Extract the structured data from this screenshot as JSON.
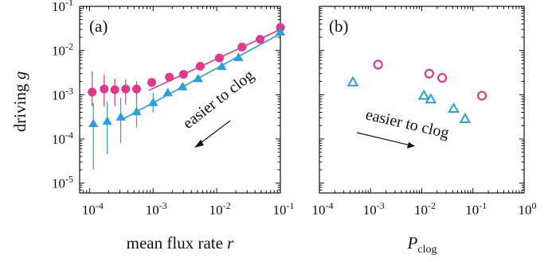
{
  "chart_data": [
    {
      "type": "scatter",
      "panel_label": "(a)",
      "xlabel": "mean flux rate r",
      "ylabel": "driving g",
      "xscale": "log",
      "yscale": "log",
      "xlim": [
        7e-05,
        0.1
      ],
      "ylim": [
        6e-06,
        0.1
      ],
      "x_ticks": [
        {
          "value": 0.0001,
          "base": "10",
          "exp": "-4"
        },
        {
          "value": 0.001,
          "base": "10",
          "exp": "-3"
        },
        {
          "value": 0.01,
          "base": "10",
          "exp": "-2"
        },
        {
          "value": 0.1,
          "base": "10",
          "exp": "-1"
        }
      ],
      "y_ticks": [
        {
          "value": 1e-05,
          "base": "10",
          "exp": "-5"
        },
        {
          "value": 0.0001,
          "base": "10",
          "exp": "-4"
        },
        {
          "value": 0.001,
          "base": "10",
          "exp": "-3"
        },
        {
          "value": 0.01,
          "base": "10",
          "exp": "-2"
        },
        {
          "value": 0.1,
          "base": "10",
          "exp": "-1"
        }
      ],
      "series": [
        {
          "marker": "circle",
          "color": "#e0388a",
          "points": [
            {
              "x": 0.00011,
              "y": 0.00115,
              "ylo": 0.00055,
              "yhi": 0.0034
            },
            {
              "x": 0.00017,
              "y": 0.00135,
              "ylo": 0.00055,
              "yhi": 0.0028
            },
            {
              "x": 0.00025,
              "y": 0.0013,
              "ylo": 0.00055,
              "yhi": 0.0023
            },
            {
              "x": 0.00037,
              "y": 0.00135,
              "ylo": 0.0006,
              "yhi": 0.0022
            },
            {
              "x": 0.00055,
              "y": 0.00135,
              "ylo": 0.0007,
              "yhi": 0.002
            },
            {
              "x": 0.00095,
              "y": 0.0019
            },
            {
              "x": 0.0018,
              "y": 0.0025
            },
            {
              "x": 0.003,
              "y": 0.0029
            },
            {
              "x": 0.0055,
              "y": 0.0044
            },
            {
              "x": 0.011,
              "y": 0.0068
            },
            {
              "x": 0.025,
              "y": 0.012
            },
            {
              "x": 0.048,
              "y": 0.018
            },
            {
              "x": 0.1,
              "y": 0.033
            }
          ],
          "fit_line": [
            [
              0.00085,
              0.00125
            ],
            [
              0.1,
              0.03
            ]
          ]
        },
        {
          "marker": "triangle",
          "color": "#2b9fd6",
          "points": [
            {
              "x": 0.000115,
              "y": 0.00022,
              "ylo": 2e-05,
              "yhi": 0.00065
            },
            {
              "x": 0.00019,
              "y": 0.00025,
              "ylo": 4.5e-05,
              "yhi": 0.0007
            },
            {
              "x": 0.00031,
              "y": 0.00031,
              "ylo": 8e-05,
              "yhi": 0.00085
            },
            {
              "x": 0.00055,
              "y": 0.00041,
              "ylo": 0.00018,
              "yhi": 0.00095
            },
            {
              "x": 0.001,
              "y": 0.00066,
              "ylo": 0.0004,
              "yhi": 0.0011
            },
            {
              "x": 0.0017,
              "y": 0.0011
            },
            {
              "x": 0.0029,
              "y": 0.0015
            },
            {
              "x": 0.0051,
              "y": 0.0023
            },
            {
              "x": 0.012,
              "y": 0.0043
            },
            {
              "x": 0.022,
              "y": 0.0069
            },
            {
              "x": 0.1,
              "y": 0.026
            }
          ],
          "fit_line": [
            [
              0.00035,
              0.00029
            ],
            [
              0.1,
              0.024
            ]
          ]
        }
      ],
      "annotation": {
        "text": "easier to clog",
        "arrow": "down-left"
      }
    },
    {
      "type": "scatter",
      "panel_label": "(b)",
      "xlabel": "P",
      "xlabel_sub": "clog",
      "xscale": "log",
      "yscale": "log",
      "xlim": [
        0.0001,
        1
      ],
      "ylim": [
        6e-06,
        0.1
      ],
      "x_ticks": [
        {
          "value": 0.0001,
          "base": "10",
          "exp": "-4"
        },
        {
          "value": 0.001,
          "base": "10",
          "exp": "-3"
        },
        {
          "value": 0.01,
          "base": "10",
          "exp": "-2"
        },
        {
          "value": 0.1,
          "base": "10",
          "exp": "-1"
        },
        {
          "value": 1,
          "base": "10",
          "exp": "0"
        }
      ],
      "series": [
        {
          "marker": "circle-open",
          "color": "#e0388a",
          "points": [
            {
              "x": 0.0014,
              "y": 0.0048
            },
            {
              "x": 0.014,
              "y": 0.003
            },
            {
              "x": 0.025,
              "y": 0.0024
            },
            {
              "x": 0.15,
              "y": 0.00095
            }
          ]
        },
        {
          "marker": "triangle-open",
          "color": "#2b9fd6",
          "points": [
            {
              "x": 0.00045,
              "y": 0.0019
            },
            {
              "x": 0.011,
              "y": 0.00095
            },
            {
              "x": 0.015,
              "y": 0.00078
            },
            {
              "x": 0.042,
              "y": 0.00048
            },
            {
              "x": 0.07,
              "y": 0.00028
            }
          ]
        }
      ],
      "annotation": {
        "text": "easier to clog",
        "arrow": "right"
      }
    }
  ]
}
